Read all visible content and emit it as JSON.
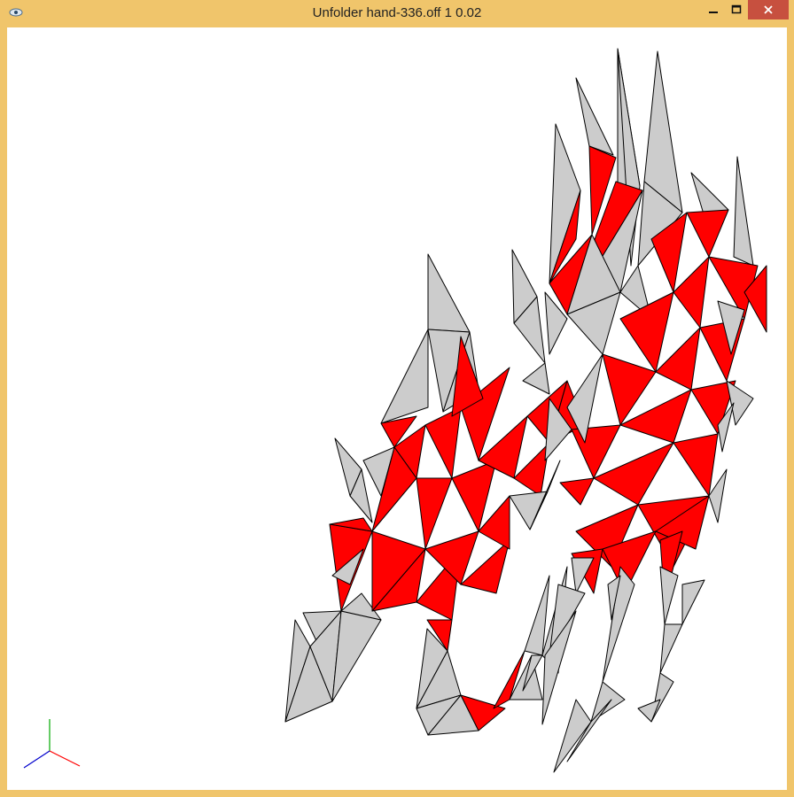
{
  "window": {
    "title": "Unfolder hand-336.off 1 0.02",
    "controls": {
      "minimize_icon": "minimize-icon",
      "maximize_icon": "maximize-icon",
      "close_icon": "close-icon"
    }
  },
  "colors": {
    "frame": "#f0c56b",
    "viewport_bg": "#ffffff",
    "face_gray": "#cccccc",
    "face_red": "#ff0000",
    "edge": "#000000",
    "close_button": "#c7503f",
    "axis_x": "#ff0000",
    "axis_y": "#00aa00",
    "axis_z": "#0000cc"
  },
  "icons": {
    "app_icon": "eye-icon"
  }
}
